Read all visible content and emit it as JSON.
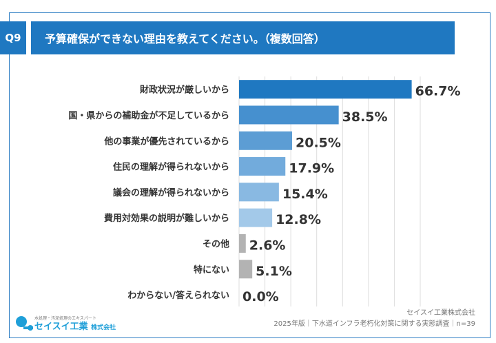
{
  "header": {
    "q_label": "Q9",
    "title": "予算確保ができない理由を教えてください。（複数回答）"
  },
  "chart_data": {
    "type": "bar",
    "orientation": "horizontal",
    "categories": [
      "財政状況が厳しいから",
      "国・県からの補助金が不足しているから",
      "他の事業が優先されているから",
      "住民の理解が得られないから",
      "議会の理解が得られないから",
      "費用対効果の説明が難しいから",
      "その他",
      "特にない",
      "わからない/答えられない"
    ],
    "values": [
      66.7,
      38.5,
      20.5,
      17.9,
      15.4,
      12.8,
      2.6,
      5.1,
      0.0
    ],
    "data_labels": [
      "66.7%",
      "38.5%",
      "20.5%",
      "17.9%",
      "15.4%",
      "12.8%",
      "2.6%",
      "5.1%",
      "0.0%"
    ],
    "colors": [
      "#1f78c1",
      "#4690cf",
      "#5c9dd4",
      "#72abdc",
      "#89b9e2",
      "#a3c9e9",
      "#b3b3b3",
      "#b3b3b3",
      "#b3b3b3"
    ],
    "xlim": [
      0,
      70
    ],
    "grid": true,
    "unit": "%"
  },
  "footer": {
    "logo_tagline": "水処理・汚泥処理のエキスパート",
    "logo_name": "セイスイ工業",
    "logo_suffix": "株式会社",
    "company": "セイスイ工業株式会社",
    "source": "2025年版｜下水道インフラ老朽化対策に関する実態調査｜n=39"
  }
}
